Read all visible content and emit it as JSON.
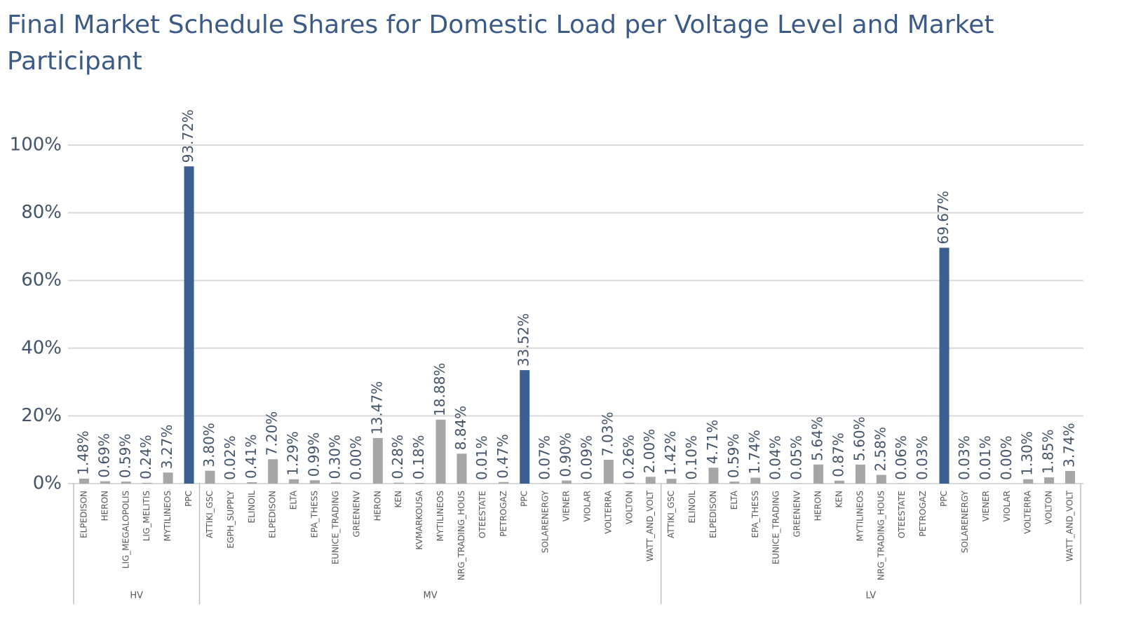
{
  "chart_data": {
    "type": "bar",
    "title": "Final Market Schedule Shares for Domestic Load per Voltage Level and Market Participant",
    "ylim": [
      0,
      100
    ],
    "yticks": [
      {
        "value": 0,
        "label": "0%"
      },
      {
        "value": 20,
        "label": "20%"
      },
      {
        "value": 40,
        "label": "40%"
      },
      {
        "value": 60,
        "label": "60%"
      },
      {
        "value": 80,
        "label": "80%"
      },
      {
        "value": 100,
        "label": "100%"
      }
    ],
    "grid": true,
    "groups": [
      {
        "name": "HV",
        "categories": [
          "ELPEDISON",
          "HERON",
          "LIG_MEGALOPOLIS",
          "LIG_MELITIS",
          "MYTILINEOS",
          "PPC"
        ],
        "values": [
          1.48,
          0.69,
          0.59,
          0.24,
          3.27,
          93.72
        ],
        "value_labels": [
          "1.48%",
          "0.69%",
          "0.59%",
          "0.24%",
          "3.27%",
          "93.72%"
        ],
        "colors": [
          "#a6a6a6",
          "#a6a6a6",
          "#a6a6a6",
          "#a6a6a6",
          "#a6a6a6",
          "#3b5f8e"
        ]
      },
      {
        "name": "MV",
        "categories": [
          "ATTIKI_GSC",
          "EGPH_SUPPLY",
          "ELINOIL",
          "ELPEDISON",
          "ELTA",
          "EPA_THESS",
          "EUNICE_TRADING",
          "GREENENV",
          "HERON",
          "KEN",
          "KVMARKOUSA",
          "MYTILINEOS",
          "NRG_TRADING_HOUS",
          "OTEESTATE",
          "PETROGAZ",
          "PPC",
          "SOLARENERGY",
          "VIENER",
          "VIOLAR",
          "VOLTERRA",
          "VOLTON",
          "WATT_AND_VOLT"
        ],
        "values": [
          3.8,
          0.02,
          0.41,
          7.2,
          1.29,
          0.99,
          0.3,
          0.0,
          13.47,
          0.28,
          0.18,
          18.88,
          8.84,
          0.01,
          0.47,
          33.52,
          0.07,
          0.9,
          0.09,
          7.03,
          0.26,
          2.0
        ],
        "value_labels": [
          "3.80%",
          "0.02%",
          "0.41%",
          "7.20%",
          "1.29%",
          "0.99%",
          "0.30%",
          "0.00%",
          "13.47%",
          "0.28%",
          "0.18%",
          "18.88%",
          "8.84%",
          "0.01%",
          "0.47%",
          "33.52%",
          "0.07%",
          "0.90%",
          "0.09%",
          "7.03%",
          "0.26%",
          "2.00%"
        ],
        "colors": [
          "#a6a6a6",
          "#a6a6a6",
          "#a6a6a6",
          "#a6a6a6",
          "#a6a6a6",
          "#a6a6a6",
          "#a6a6a6",
          "#a6a6a6",
          "#a6a6a6",
          "#a6a6a6",
          "#a6a6a6",
          "#a6a6a6",
          "#a6a6a6",
          "#a6a6a6",
          "#a6a6a6",
          "#3b5f8e",
          "#a6a6a6",
          "#a6a6a6",
          "#a6a6a6",
          "#a6a6a6",
          "#a6a6a6",
          "#a6a6a6"
        ]
      },
      {
        "name": "LV",
        "categories": [
          "ATTIKI_GSC",
          "ELINOIL",
          "ELPEDISON",
          "ELTA",
          "EPA_THESS",
          "EUNICE_TRADING",
          "GREENENV",
          "HERON",
          "KEN",
          "MYTILINEOS",
          "NRG_TRADING_HOUS",
          "OTEESTATE",
          "PETROGAZ",
          "PPC",
          "SOLARENERGY",
          "VIENER",
          "VIOLAR",
          "VOLTERRA",
          "VOLTON",
          "WATT_AND_VOLT"
        ],
        "values": [
          1.42,
          0.1,
          4.71,
          0.59,
          1.74,
          0.04,
          0.05,
          5.64,
          0.87,
          5.6,
          2.58,
          0.06,
          0.03,
          69.67,
          0.03,
          0.01,
          0.0,
          1.3,
          1.85,
          3.74
        ],
        "value_labels": [
          "1.42%",
          "0.10%",
          "4.71%",
          "0.59%",
          "1.74%",
          "0.04%",
          "0.05%",
          "5.64%",
          "0.87%",
          "5.60%",
          "2.58%",
          "0.06%",
          "0.03%",
          "69.67%",
          "0.03%",
          "0.01%",
          "0.00%",
          "1.30%",
          "1.85%",
          "3.74%"
        ],
        "colors": [
          "#a6a6a6",
          "#a6a6a6",
          "#a6a6a6",
          "#a6a6a6",
          "#a6a6a6",
          "#a6a6a6",
          "#a6a6a6",
          "#a6a6a6",
          "#a6a6a6",
          "#a6a6a6",
          "#a6a6a6",
          "#a6a6a6",
          "#a6a6a6",
          "#3b5f8e",
          "#a6a6a6",
          "#a6a6a6",
          "#a6a6a6",
          "#a6a6a6",
          "#a6a6a6",
          "#a6a6a6"
        ]
      }
    ]
  }
}
